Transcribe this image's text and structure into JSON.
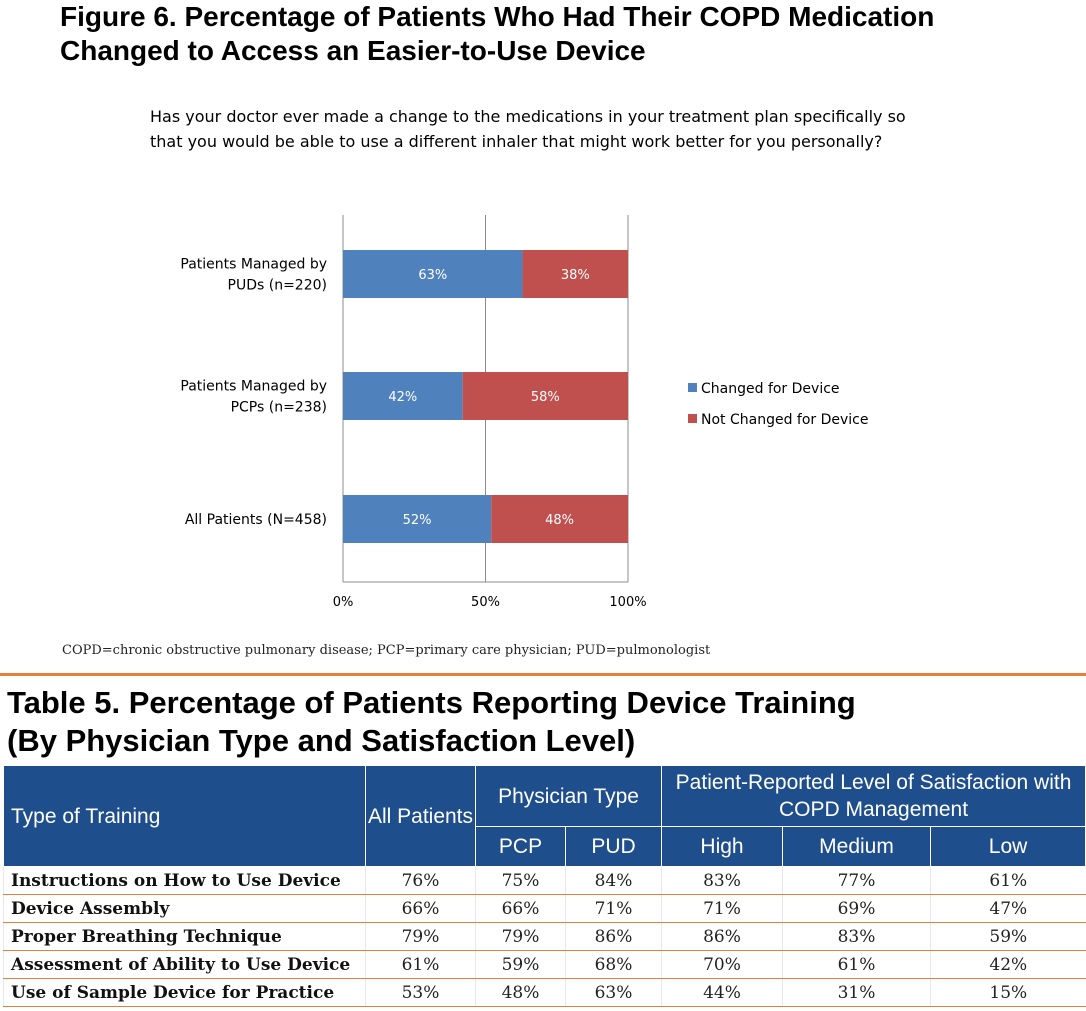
{
  "figure": {
    "title_line1": "Figure 6. Percentage of Patients Who Had Their COPD Medication",
    "title_line2": "Changed to Access an Easier-to-Use Device",
    "question_line1": "Has your doctor ever made a change to the medications in your treatment plan specifically so",
    "question_line2": "that you would be able to use a different inhaler that might work better for you personally?"
  },
  "chart_data": {
    "type": "bar",
    "orientation": "horizontal",
    "stacked": true,
    "categories": [
      [
        "Patients Managed by",
        "PUDs (n=220)"
      ],
      [
        "Patients Managed by",
        "PCPs (n=238)"
      ],
      [
        "All Patients (N=458)"
      ]
    ],
    "series": [
      {
        "name": "Changed for Device",
        "color": "#4f81bd",
        "values": [
          63,
          42,
          52
        ],
        "labels": [
          "63%",
          "42%",
          "52%"
        ]
      },
      {
        "name": "Not Changed for Device",
        "color": "#c0504d",
        "values": [
          38,
          58,
          48
        ],
        "labels": [
          "38%",
          "58%",
          "48%"
        ]
      }
    ],
    "xlim": [
      0,
      100
    ],
    "x_ticks": [
      "0%",
      "50%",
      "100%"
    ],
    "grid": true,
    "legend_position": "right"
  },
  "footnote": "COPD=chronic obstructive pulmonary disease; PCP=primary care physician; PUD=pulmonologist",
  "table": {
    "title_line1": "Table 5. Percentage of Patients Reporting Device Training",
    "title_line2": "(By Physician Type and Satisfaction Level)",
    "header_type": "Type of Training",
    "header_all": "All Patients",
    "header_physician": "Physician Type",
    "header_satisfaction": "Patient-Reported Level of Satisfaction with COPD Management",
    "sub_pcp": "PCP",
    "sub_pud": "PUD",
    "sub_high": "High",
    "sub_medium": "Medium",
    "sub_low": "Low",
    "rows": [
      {
        "name": "Instructions on How to Use Device",
        "all": "76%",
        "pcp": "75%",
        "pud": "84%",
        "high": "83%",
        "medium": "77%",
        "low": "61%"
      },
      {
        "name": "Device Assembly",
        "all": "66%",
        "pcp": "66%",
        "pud": "71%",
        "high": "71%",
        "medium": "69%",
        "low": "47%"
      },
      {
        "name": "Proper Breathing Technique",
        "all": "79%",
        "pcp": "79%",
        "pud": "86%",
        "high": "86%",
        "medium": "83%",
        "low": "59%"
      },
      {
        "name": "Assessment of Ability to Use Device",
        "all": "61%",
        "pcp": "59%",
        "pud": "68%",
        "high": "70%",
        "medium": "61%",
        "low": "42%"
      },
      {
        "name": "Use of Sample Device for Practice",
        "all": "53%",
        "pcp": "48%",
        "pud": "63%",
        "high": "44%",
        "medium": "31%",
        "low": "15%"
      }
    ]
  }
}
